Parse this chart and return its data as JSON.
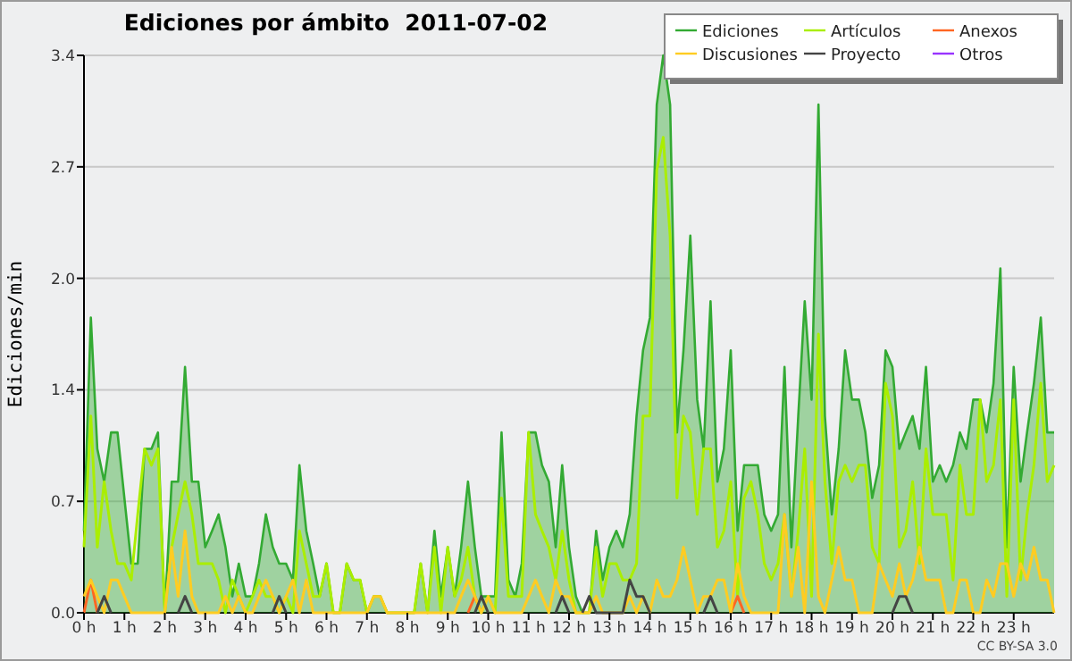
{
  "chart_data": {
    "type": "line",
    "title": "Ediciones por ámbito  2011-07-02",
    "ylabel": "Ediciones/min",
    "x": [
      0,
      0.17,
      0.33,
      0.5,
      0.67,
      0.83,
      1,
      1.17,
      1.33,
      1.5,
      1.67,
      1.83,
      2,
      2.17,
      2.33,
      2.5,
      2.67,
      2.83,
      3,
      3.17,
      3.33,
      3.5,
      3.67,
      3.83,
      4,
      4.17,
      4.33,
      4.5,
      4.67,
      4.83,
      5,
      5.17,
      5.33,
      5.5,
      5.67,
      5.83,
      6,
      6.17,
      6.33,
      6.5,
      6.67,
      6.83,
      7,
      7.17,
      7.33,
      7.5,
      7.67,
      7.83,
      8,
      8.17,
      8.33,
      8.5,
      8.67,
      8.83,
      9,
      9.17,
      9.33,
      9.5,
      9.67,
      9.83,
      10,
      10.17,
      10.33,
      10.5,
      10.67,
      10.83,
      11,
      11.17,
      11.33,
      11.5,
      11.67,
      11.83,
      12,
      12.17,
      12.33,
      12.5,
      12.67,
      12.83,
      13,
      13.17,
      13.33,
      13.5,
      13.67,
      13.83,
      14,
      14.17,
      14.33,
      14.5,
      14.67,
      14.83,
      15,
      15.17,
      15.33,
      15.5,
      15.67,
      15.83,
      16,
      16.17,
      16.33,
      16.5,
      16.67,
      16.83,
      17,
      17.17,
      17.33,
      17.5,
      17.67,
      17.83,
      18,
      18.17,
      18.33,
      18.5,
      18.67,
      18.83,
      19,
      19.17,
      19.33,
      19.5,
      19.67,
      19.83,
      20,
      20.17,
      20.33,
      20.5,
      20.67,
      20.83,
      21,
      21.17,
      21.33,
      21.5,
      21.67,
      21.83,
      22,
      22.17,
      22.33,
      22.5,
      22.67,
      22.83,
      23,
      23.17,
      23.33,
      23.5,
      23.67,
      23.83,
      24
    ],
    "series": [
      {
        "name": "Ediciones",
        "type": "area",
        "color": "#33aa33",
        "values": [
          0.5,
          1.8,
          1.0,
          0.8,
          1.1,
          1.1,
          0.7,
          0.3,
          0.3,
          1.0,
          1.0,
          1.1,
          0.0,
          0.8,
          0.8,
          1.5,
          0.8,
          0.8,
          0.4,
          0.5,
          0.6,
          0.4,
          0.1,
          0.3,
          0.1,
          0.1,
          0.3,
          0.6,
          0.4,
          0.3,
          0.3,
          0.2,
          0.9,
          0.5,
          0.3,
          0.1,
          0.3,
          0.0,
          0.0,
          0.3,
          0.2,
          0.2,
          0.0,
          0.1,
          0.1,
          0.0,
          0.0,
          0.0,
          0.0,
          0.0,
          0.3,
          0.0,
          0.5,
          0.1,
          0.4,
          0.1,
          0.4,
          0.8,
          0.4,
          0.1,
          0.1,
          0.1,
          1.1,
          0.2,
          0.1,
          0.3,
          1.1,
          1.1,
          0.9,
          0.8,
          0.4,
          0.9,
          0.4,
          0.1,
          0.0,
          0.0,
          0.5,
          0.2,
          0.4,
          0.5,
          0.4,
          0.6,
          1.2,
          1.6,
          1.8,
          3.1,
          3.4,
          3.1,
          1.1,
          1.6,
          2.3,
          1.3,
          1.0,
          1.9,
          0.8,
          1.0,
          1.6,
          0.5,
          0.9,
          0.9,
          0.9,
          0.6,
          0.5,
          0.6,
          1.5,
          0.4,
          1.2,
          1.9,
          1.3,
          3.1,
          1.2,
          0.6,
          1.0,
          1.6,
          1.3,
          1.3,
          1.1,
          0.7,
          0.9,
          1.6,
          1.5,
          1.0,
          1.1,
          1.2,
          1.0,
          1.5,
          0.8,
          0.9,
          0.8,
          0.9,
          1.1,
          1.0,
          1.3,
          1.3,
          1.1,
          1.4,
          2.1,
          0.4,
          1.5,
          0.8,
          1.1,
          1.4,
          1.8,
          1.1,
          1.1
        ]
      },
      {
        "name": "Artículos",
        "color": "#aaee00",
        "values": [
          0.4,
          1.2,
          0.4,
          0.8,
          0.5,
          0.3,
          0.3,
          0.2,
          0.6,
          1.0,
          0.9,
          1.0,
          0.0,
          0.4,
          0.6,
          0.8,
          0.6,
          0.3,
          0.3,
          0.3,
          0.2,
          0.0,
          0.2,
          0.1,
          0.0,
          0.1,
          0.2,
          0.1,
          0.1,
          0.0,
          0.1,
          0.0,
          0.5,
          0.3,
          0.1,
          0.1,
          0.3,
          0.0,
          0.0,
          0.3,
          0.2,
          0.2,
          0.0,
          0.1,
          0.1,
          0.0,
          0.0,
          0.0,
          0.0,
          0.0,
          0.3,
          0.0,
          0.4,
          0.0,
          0.4,
          0.1,
          0.2,
          0.4,
          0.1,
          0.0,
          0.1,
          0.0,
          0.7,
          0.1,
          0.1,
          0.1,
          1.1,
          0.6,
          0.5,
          0.4,
          0.2,
          0.5,
          0.2,
          0.0,
          0.0,
          0.0,
          0.4,
          0.1,
          0.3,
          0.3,
          0.2,
          0.2,
          0.3,
          1.2,
          1.2,
          2.7,
          2.9,
          2.3,
          0.7,
          1.2,
          1.1,
          0.6,
          1.0,
          1.0,
          0.4,
          0.5,
          0.8,
          0.1,
          0.7,
          0.8,
          0.6,
          0.3,
          0.2,
          0.3,
          0.6,
          0.1,
          0.5,
          1.0,
          0.1,
          1.7,
          0.8,
          0.3,
          0.8,
          0.9,
          0.8,
          0.9,
          0.9,
          0.4,
          0.3,
          1.4,
          1.2,
          0.4,
          0.5,
          0.8,
          0.3,
          1.0,
          0.6,
          0.6,
          0.6,
          0.2,
          0.9,
          0.6,
          0.6,
          1.3,
          0.8,
          0.9,
          1.3,
          0.1,
          1.3,
          0.2,
          0.6,
          0.9,
          1.4,
          0.8,
          0.9
        ]
      },
      {
        "name": "Anexos",
        "color": "#ff6622",
        "values": [
          0,
          0.2,
          0,
          null,
          null,
          null,
          null,
          null,
          null,
          null,
          null,
          null,
          null,
          null,
          null,
          null,
          null,
          null,
          null,
          null,
          null,
          null,
          null,
          null,
          null,
          null,
          null,
          null,
          null,
          null,
          null,
          null,
          null,
          null,
          null,
          null,
          null,
          null,
          null,
          null,
          null,
          null,
          null,
          null,
          null,
          null,
          null,
          null,
          null,
          null,
          null,
          null,
          null,
          null,
          null,
          null,
          null,
          0,
          0.1,
          0,
          null,
          null,
          null,
          null,
          null,
          null,
          null,
          null,
          null,
          null,
          null,
          null,
          null,
          null,
          null,
          null,
          null,
          null,
          null,
          null,
          null,
          null,
          null,
          null,
          null,
          null,
          null,
          null,
          null,
          null,
          null,
          null,
          null,
          null,
          null,
          null,
          0,
          0.1,
          0,
          null,
          null,
          null,
          null,
          null,
          null,
          null,
          null,
          null,
          null,
          null,
          null,
          null,
          null,
          null,
          null,
          null,
          null,
          null,
          null,
          null,
          null,
          null,
          null,
          null,
          null,
          null,
          null,
          null,
          null,
          null,
          null,
          null,
          null,
          null,
          null,
          null,
          null,
          null,
          null,
          null,
          null,
          null,
          null,
          null,
          null
        ]
      },
      {
        "name": "Discusiones",
        "color": "#ffcc22",
        "values": [
          0.1,
          0.2,
          0.1,
          0.0,
          0.2,
          0.2,
          0.1,
          0.0,
          0.0,
          0.0,
          0.0,
          0.0,
          0.0,
          0.4,
          0.1,
          0.5,
          0.1,
          0.0,
          0.0,
          0.0,
          0.0,
          0.1,
          0.0,
          0.1,
          0.0,
          0.0,
          0.1,
          0.2,
          0.1,
          0.0,
          0.1,
          0.2,
          0.0,
          0.2,
          0.0,
          0.0,
          0.0,
          0.0,
          0.0,
          0.0,
          0.0,
          0.0,
          0.0,
          0.1,
          0.1,
          0.0,
          0.0,
          0.0,
          0,
          0,
          0,
          0,
          0,
          0,
          0.0,
          0.0,
          0.1,
          0.2,
          0.1,
          0.0,
          0.1,
          0.0,
          0.0,
          0.0,
          0.0,
          0.0,
          0.1,
          0.2,
          0.1,
          0.0,
          0.2,
          0.1,
          0.1,
          0.0,
          0.0,
          0.0,
          0.1,
          0.0,
          0.0,
          0.0,
          0.0,
          0.1,
          0.0,
          0.1,
          0.0,
          0.2,
          0.1,
          0.1,
          0.2,
          0.4,
          0.2,
          0.0,
          0.1,
          0.1,
          0.2,
          0.2,
          0.0,
          0.3,
          0.1,
          0.0,
          0.0,
          0.0,
          0.0,
          0.0,
          0.6,
          0.1,
          0.4,
          0.0,
          0.8,
          0.1,
          0.0,
          0.2,
          0.4,
          0.2,
          0.2,
          0.0,
          0.0,
          0.0,
          0.3,
          0.2,
          0.1,
          0.3,
          0.1,
          0.2,
          0.4,
          0.2,
          0.2,
          0.2,
          0.0,
          0.0,
          0.2,
          0.2,
          0.0,
          0.0,
          0.2,
          0.1,
          0.3,
          0.3,
          0.1,
          0.3,
          0.2,
          0.4,
          0.2,
          0.2,
          0.0
        ]
      },
      {
        "name": "Proyecto",
        "color": "#444444",
        "values": [
          null,
          null,
          0,
          0.1,
          0,
          null,
          null,
          null,
          null,
          null,
          null,
          null,
          null,
          null,
          0,
          0.1,
          0,
          null,
          null,
          null,
          null,
          null,
          null,
          null,
          null,
          null,
          null,
          null,
          0,
          0.1,
          0,
          null,
          null,
          null,
          null,
          null,
          null,
          null,
          null,
          null,
          null,
          null,
          null,
          null,
          null,
          null,
          null,
          null,
          null,
          null,
          null,
          null,
          null,
          null,
          null,
          null,
          null,
          null,
          0,
          0.1,
          0,
          null,
          null,
          null,
          null,
          null,
          null,
          null,
          null,
          null,
          0,
          0.1,
          0,
          null,
          0,
          0.1,
          0,
          0,
          0,
          0,
          0,
          0.2,
          0.1,
          0.1,
          0,
          null,
          null,
          null,
          null,
          null,
          null,
          null,
          0,
          0.1,
          0,
          null,
          null,
          null,
          null,
          null,
          null,
          null,
          null,
          null,
          null,
          null,
          null,
          null,
          null,
          null,
          null,
          null,
          null,
          null,
          null,
          null,
          null,
          null,
          null,
          null,
          0,
          0.1,
          0.1,
          0,
          null,
          null,
          null,
          null,
          null,
          null,
          null,
          null,
          null,
          null,
          null,
          null,
          null,
          null,
          null,
          null,
          null,
          null,
          null,
          null,
          null
        ]
      },
      {
        "name": "Otros",
        "color": "#9933ff",
        "values": [
          null,
          null,
          null,
          null,
          null,
          null,
          null,
          null,
          null,
          null,
          null,
          null,
          null,
          null,
          null,
          null,
          null,
          null,
          null,
          null,
          null,
          null,
          null,
          null,
          null,
          null,
          null,
          null,
          null,
          null,
          null,
          null,
          null,
          null,
          null,
          null,
          null,
          null,
          null,
          null,
          null,
          null,
          null,
          null,
          null,
          null,
          null,
          null,
          null,
          null,
          null,
          null,
          null,
          null,
          null,
          null,
          null,
          null,
          null,
          null,
          null,
          null,
          null,
          null,
          null,
          null,
          null,
          null,
          null,
          null,
          null,
          null,
          null,
          null,
          null,
          null,
          null,
          null,
          null,
          null,
          null,
          null,
          null,
          null,
          null,
          null,
          null,
          null,
          null,
          null,
          null,
          null,
          null,
          null,
          null,
          null,
          null,
          null,
          null,
          null,
          null,
          null,
          null,
          null,
          null,
          null,
          null,
          null,
          null,
          null,
          null,
          null,
          null,
          null,
          null,
          null,
          null,
          null,
          null,
          null,
          null,
          null,
          null,
          null,
          null,
          null,
          null,
          null,
          null,
          null,
          null,
          null,
          null,
          null,
          null,
          null,
          null,
          null,
          null,
          null,
          null,
          null,
          null,
          null,
          null
        ]
      }
    ],
    "xlim": [
      0,
      24
    ],
    "xticks": [
      {
        "value": 0,
        "label": "0 h"
      },
      {
        "value": 1,
        "label": "1 h"
      },
      {
        "value": 2,
        "label": "2 h"
      },
      {
        "value": 3,
        "label": "3 h"
      },
      {
        "value": 4,
        "label": "4 h"
      },
      {
        "value": 5,
        "label": "5 h"
      },
      {
        "value": 6,
        "label": "6 h"
      },
      {
        "value": 7,
        "label": "7 h"
      },
      {
        "value": 8,
        "label": "8 h"
      },
      {
        "value": 9,
        "label": "9 h"
      },
      {
        "value": 10,
        "label": "10 h"
      },
      {
        "value": 11,
        "label": "11 h"
      },
      {
        "value": 12,
        "label": "12 h"
      },
      {
        "value": 13,
        "label": "13 h"
      },
      {
        "value": 14,
        "label": "14 h"
      },
      {
        "value": 15,
        "label": "15 h"
      },
      {
        "value": 16,
        "label": "16 h"
      },
      {
        "value": 17,
        "label": "17 h"
      },
      {
        "value": 18,
        "label": "18 h"
      },
      {
        "value": 19,
        "label": "19 h"
      },
      {
        "value": 20,
        "label": "20 h"
      },
      {
        "value": 21,
        "label": "21 h"
      },
      {
        "value": 22,
        "label": "22 h"
      },
      {
        "value": 23,
        "label": "23 h"
      }
    ],
    "ylim": [
      0,
      3.4
    ],
    "yticks": [
      {
        "value": 0,
        "label": "0.0"
      },
      {
        "value": 0.68,
        "label": "0.7"
      },
      {
        "value": 1.36,
        "label": "1.4"
      },
      {
        "value": 2.04,
        "label": "2.0"
      },
      {
        "value": 2.72,
        "label": "2.7"
      },
      3.4
    ],
    "grid": "y",
    "legend": "top right",
    "annotations": [
      "CC BY-SA 3.0"
    ]
  }
}
